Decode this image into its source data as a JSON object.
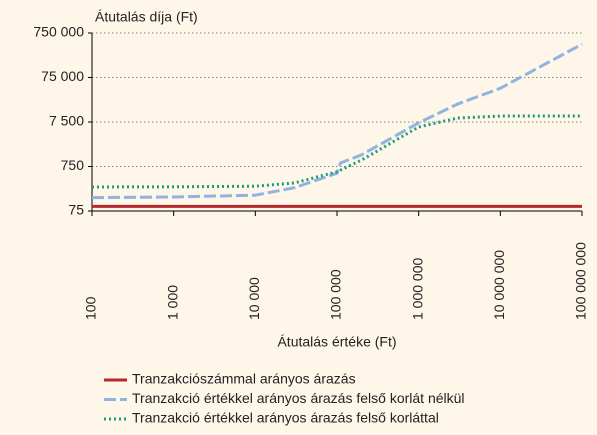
{
  "chart_data": {
    "type": "line",
    "ylabel": "Átutalás díja (Ft)",
    "xlabel": "Átutalás értéke (Ft)",
    "x": [
      100,
      1000,
      10000,
      30000,
      100000,
      110000,
      200000,
      1000000,
      3000000,
      10000000,
      100000000
    ],
    "series": [
      {
        "name": "Tranzakciószámmal arányos árazás",
        "color": "#b22a2e",
        "style": "solid",
        "values": [
          95,
          95,
          95,
          95,
          95,
          95,
          95,
          95,
          95,
          95,
          95
        ]
      },
      {
        "name": "Tranzakció értékkel arányos árazás felső korlát nélkül",
        "color": "#8fb4e0",
        "style": "dashed",
        "values": [
          150,
          155,
          170,
          250,
          530,
          900,
          1370,
          7200,
          19000,
          43000,
          420000
        ]
      },
      {
        "name": "Tranzakció értékkel arányos árazás felső korláttal",
        "color": "#1a9a7e",
        "style": "dotted",
        "values": [
          260,
          262,
          270,
          320,
          570,
          620,
          1050,
          5800,
          9200,
          10200,
          10200
        ]
      }
    ],
    "xlim": [
      100,
      100000000
    ],
    "xticks": [
      100,
      {
        "value": 1000,
        "label": "1 000"
      },
      {
        "value": 10000,
        "label": "10 000"
      },
      {
        "value": 100000,
        "label": "100 000"
      },
      {
        "value": 1000000,
        "label": "1 000 000"
      },
      {
        "value": 10000000,
        "label": "10 000 000"
      },
      {
        "value": 100000000,
        "label": "100 000 000"
      }
    ],
    "ylim": [
      75,
      750000
    ],
    "yticks": [
      75,
      750,
      {
        "value": 7500,
        "label": "7 500"
      },
      {
        "value": 75000,
        "label": "75 000"
      },
      {
        "value": 750000,
        "label": "750 000"
      }
    ],
    "xscale": "log",
    "yscale": "log",
    "grid": true
  }
}
